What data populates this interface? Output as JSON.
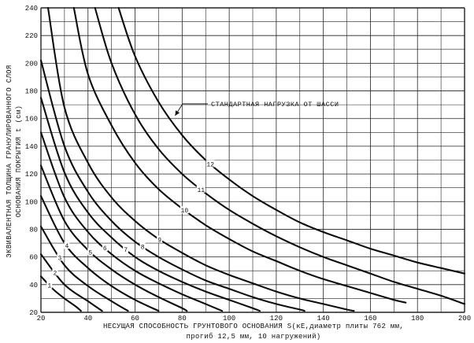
{
  "chart_data": {
    "type": "line",
    "title": "",
    "xlabel_line1": "НЕСУЩАЯ СПОСОБНОСТЬ ГРУНТОВОГО ОСНОВАНИЯ S(кЕ,диаметр плиты 762 мм,",
    "xlabel_line2": "прогиб 12,5 мм, 10 нагружений)",
    "ylabel_line1": "ЭКВИВАЛЕНТНАЯ ТОЛЩИНА ГРАНУЛИРОВАННОГО СЛОЯ",
    "ylabel_line2": "ОСНОВАНИЯ ПОКРЫТИЯ t (см)",
    "xlim": [
      20,
      200
    ],
    "ylim": [
      20,
      240
    ],
    "x_ticks": [
      20,
      40,
      60,
      80,
      100,
      120,
      140,
      160,
      180,
      200
    ],
    "y_ticks": [
      20,
      40,
      60,
      80,
      100,
      120,
      140,
      160,
      180,
      200,
      220,
      240
    ],
    "x_minor_step": 10,
    "y_minor_step": 10,
    "grid": true,
    "annotation": {
      "text": "СТАНДАРТНАЯ НАГРУЗКА ОТ ШАССИ",
      "points_to_series": "12"
    },
    "series": [
      {
        "name": "1",
        "x": [
          20,
          25,
          30,
          35,
          37
        ],
        "y": [
          46,
          37,
          30,
          24,
          21
        ]
      },
      {
        "name": "2",
        "x": [
          20,
          30,
          40,
          46
        ],
        "y": [
          62,
          40,
          28,
          21
        ]
      },
      {
        "name": "3",
        "x": [
          20,
          30,
          40,
          50,
          57
        ],
        "y": [
          82,
          54,
          39,
          28,
          21
        ]
      },
      {
        "name": "4",
        "x": [
          20,
          30,
          40,
          50,
          60,
          70
        ],
        "y": [
          104,
          70,
          52,
          39,
          29,
          21
        ]
      },
      {
        "name": "5",
        "x": [
          20,
          30,
          40,
          50,
          60,
          70,
          80,
          82
        ],
        "y": [
          126,
          86,
          65,
          51,
          40,
          31,
          23,
          21
        ]
      },
      {
        "name": "6",
        "x": [
          20,
          30,
          40,
          50,
          60,
          70,
          80,
          90,
          97
        ],
        "y": [
          150,
          103,
          78,
          62,
          50,
          41,
          33,
          26,
          21
        ]
      },
      {
        "name": "7",
        "x": [
          20,
          30,
          40,
          50,
          60,
          70,
          80,
          90,
          100,
          110,
          113
        ],
        "y": [
          175,
          121,
          92,
          74,
          60,
          50,
          42,
          35,
          29,
          23,
          21
        ]
      },
      {
        "name": "8",
        "x": [
          20,
          30,
          40,
          50,
          60,
          70,
          80,
          90,
          100,
          110,
          120,
          130,
          132
        ],
        "y": [
          202,
          140,
          107,
          86,
          71,
          60,
          51,
          43,
          37,
          31,
          26,
          22,
          21
        ]
      },
      {
        "name": "9",
        "x": [
          23,
          30,
          40,
          50,
          60,
          70,
          80,
          90,
          100,
          110,
          120,
          130,
          140,
          150,
          153
        ],
        "y": [
          240,
          168,
          128,
          103,
          86,
          73,
          63,
          54,
          47,
          41,
          35,
          30,
          26,
          22,
          21
        ]
      },
      {
        "name": "10",
        "x": [
          34,
          40,
          50,
          60,
          70,
          80,
          90,
          100,
          110,
          120,
          130,
          140,
          150,
          160,
          170,
          175
        ],
        "y": [
          240,
          192,
          155,
          128,
          109,
          95,
          83,
          73,
          64,
          57,
          50,
          44,
          39,
          34,
          29,
          27
        ]
      },
      {
        "name": "11",
        "x": [
          43,
          50,
          60,
          70,
          80,
          90,
          100,
          110,
          120,
          130,
          140,
          150,
          160,
          170,
          180,
          190,
          200
        ],
        "y": [
          240,
          200,
          163,
          138,
          120,
          106,
          94,
          84,
          75,
          67,
          60,
          54,
          48,
          42,
          37,
          32,
          26
        ]
      },
      {
        "name": "12",
        "x": [
          53,
          60,
          70,
          80,
          90,
          100,
          110,
          120,
          130,
          140,
          150,
          160,
          170,
          180,
          190,
          200
        ],
        "y": [
          240,
          205,
          172,
          148,
          130,
          116,
          104,
          94,
          85,
          78,
          72,
          66,
          61,
          56,
          52,
          48
        ]
      }
    ]
  }
}
